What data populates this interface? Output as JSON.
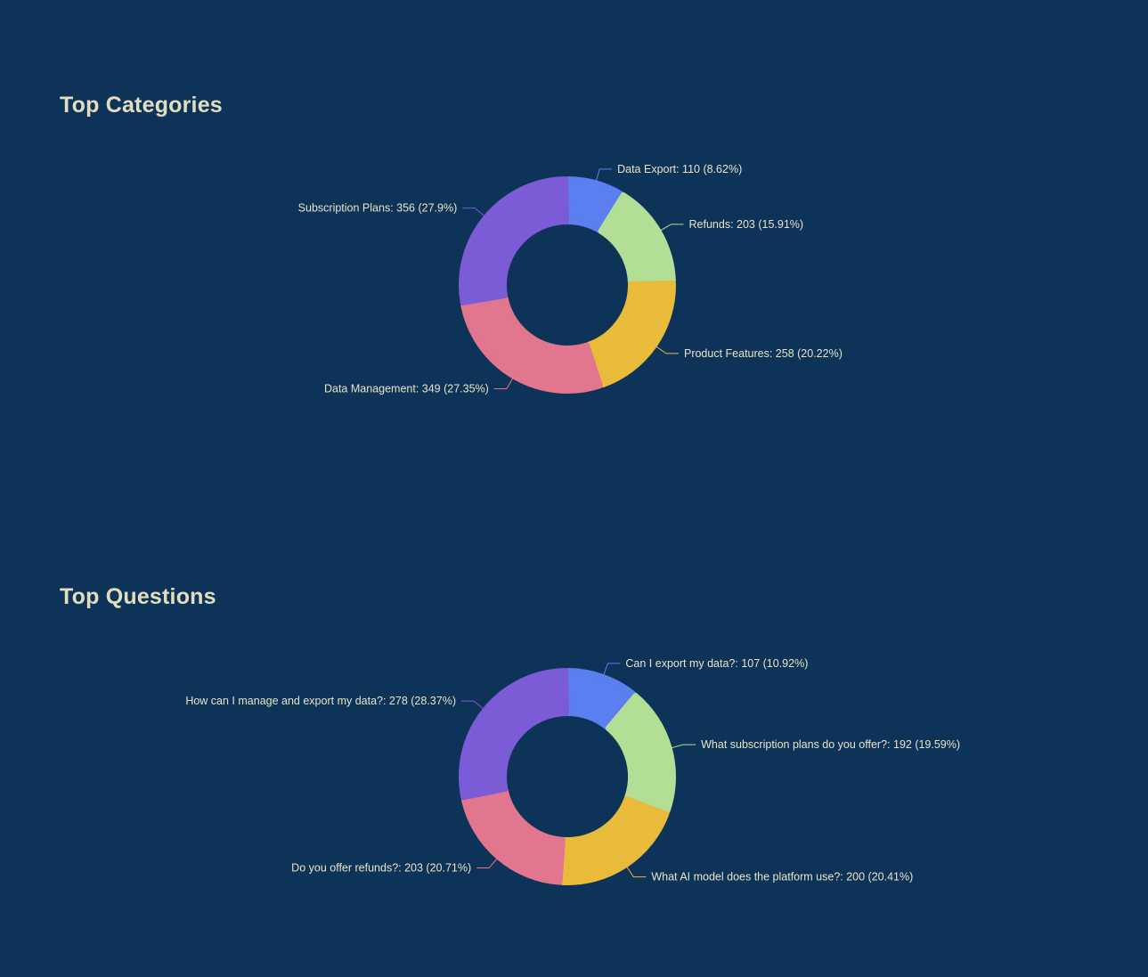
{
  "sections": {
    "categories": {
      "title": "Top Categories"
    },
    "questions": {
      "title": "Top Questions"
    }
  },
  "chart_data": [
    {
      "type": "pie",
      "style": "donut",
      "title": "Top Categories",
      "slices": [
        {
          "label": "Data Export",
          "value": 110,
          "percent": "8.62%",
          "color": "#5b7ff0",
          "label_text": "Data Export: 110 (8.62%)"
        },
        {
          "label": "Refunds",
          "value": 203,
          "percent": "15.91%",
          "color": "#b3de96",
          "label_text": "Refunds: 203 (15.91%)"
        },
        {
          "label": "Product Features",
          "value": 258,
          "percent": "20.22%",
          "color": "#e8bb3a",
          "label_text": "Product Features: 258 (20.22%)"
        },
        {
          "label": "Data Management",
          "value": 349,
          "percent": "27.35%",
          "color": "#e2768e",
          "label_text": "Data Management: 349 (27.35%)"
        },
        {
          "label": "Subscription Plans",
          "value": 356,
          "percent": "27.9%",
          "color": "#7b5bd6",
          "label_text": "Subscription Plans: 356 (27.9%)"
        }
      ]
    },
    {
      "type": "pie",
      "style": "donut",
      "title": "Top Questions",
      "slices": [
        {
          "label": "Can I export my data?",
          "value": 107,
          "percent": "10.92%",
          "color": "#5b7ff0",
          "label_text": "Can I export my data?: 107 (10.92%)"
        },
        {
          "label": "What subscription plans do you offer?",
          "value": 192,
          "percent": "19.59%",
          "color": "#b3de96",
          "label_text": "What subscription plans do you offer?: 192 (19.59%)"
        },
        {
          "label": "What AI model does the platform use?",
          "value": 200,
          "percent": "20.41%",
          "color": "#e8bb3a",
          "label_text": "What AI model does the platform use?: 200 (20.41%)"
        },
        {
          "label": "Do you offer refunds?",
          "value": 203,
          "percent": "20.71%",
          "color": "#e2768e",
          "label_text": "Do you offer refunds?: 203 (20.71%)"
        },
        {
          "label": "How can I manage and export my data?",
          "value": 278,
          "percent": "28.37%",
          "color": "#7b5bd6",
          "label_text": "How can I manage and export my data?: 278 (28.37%)"
        }
      ]
    }
  ]
}
